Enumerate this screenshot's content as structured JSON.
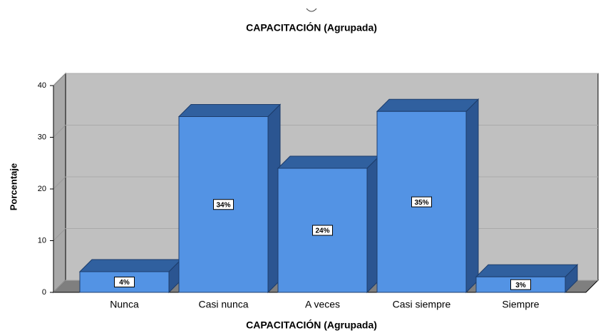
{
  "chart_data": {
    "type": "bar3d",
    "title": "CAPACITACIÓN (Agrupada)",
    "x_label": "CAPACITACIÓN (Agrupada)",
    "y_label": "Porcentaje",
    "categories": [
      "Nunca",
      "Casi nunca",
      "A veces",
      "Casi siempre",
      "Siempre"
    ],
    "values": [
      4,
      34,
      24,
      35,
      3
    ],
    "value_labels": [
      "4%",
      "34%",
      "24%",
      "35%",
      "3%"
    ],
    "color": "#5393e4",
    "ylim": [
      0,
      40
    ],
    "yticks": [
      0,
      10,
      20,
      30,
      40
    ],
    "grid": true
  }
}
